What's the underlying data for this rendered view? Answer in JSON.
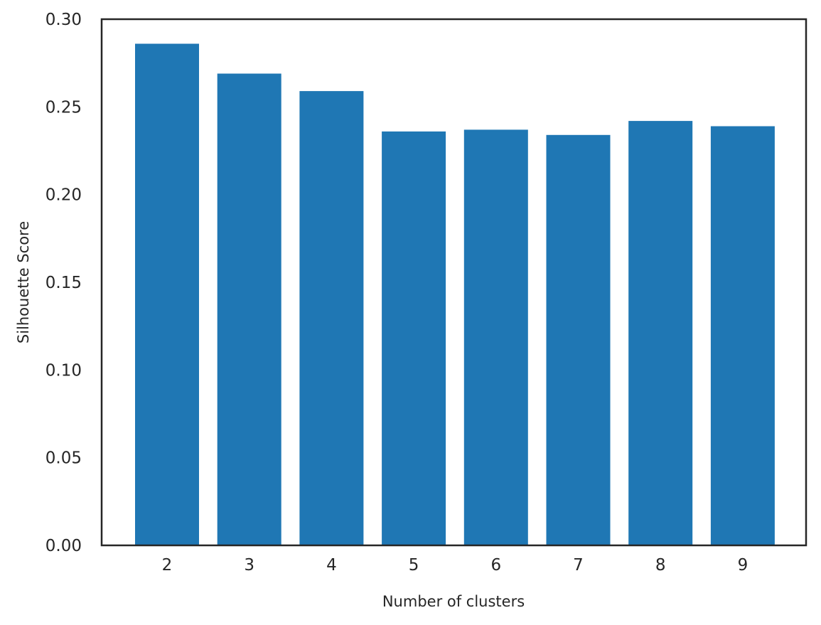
{
  "chart_data": {
    "type": "bar",
    "title": "",
    "xlabel": "Number of clusters",
    "ylabel": "Silhouette Score",
    "categories": [
      "2",
      "3",
      "4",
      "5",
      "6",
      "7",
      "8",
      "9"
    ],
    "values": [
      0.286,
      0.269,
      0.259,
      0.236,
      0.237,
      0.234,
      0.242,
      0.239
    ],
    "ylim": [
      0,
      0.3
    ],
    "yticks": [
      "0.00",
      "0.05",
      "0.10",
      "0.15",
      "0.20",
      "0.25",
      "0.30"
    ],
    "grid": false,
    "legend": "none",
    "bar_color": "#1f77b4",
    "axis_color": "#262626"
  }
}
